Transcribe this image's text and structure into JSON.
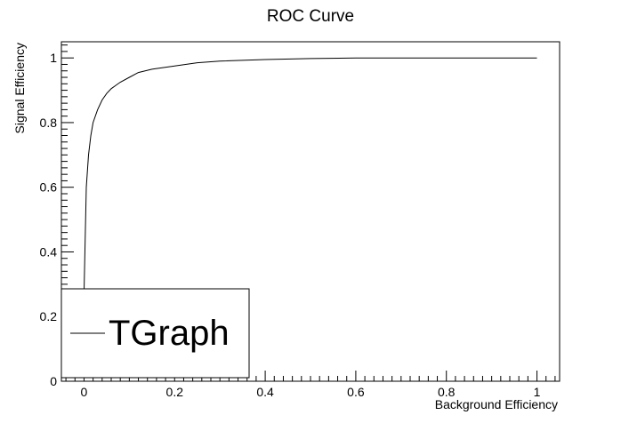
{
  "chart_data": {
    "type": "line",
    "title": "ROC Curve",
    "xlabel": "Background Efficiency",
    "ylabel": "Signal Efficiency",
    "xlim": [
      -0.05,
      1.05
    ],
    "ylim": [
      0,
      1.05
    ],
    "x_ticks": [
      0,
      0.2,
      0.4,
      0.6,
      0.8,
      1
    ],
    "x_tick_labels": [
      "0",
      "0.2",
      "0.4",
      "0.6",
      "0.8",
      "1"
    ],
    "y_ticks": [
      0,
      0.2,
      0.4,
      0.6,
      0.8,
      1
    ],
    "y_tick_labels": [
      "0",
      "0.2",
      "0.4",
      "0.6",
      "0.8",
      "1"
    ],
    "grid": false,
    "legend": {
      "position": "bottom-left",
      "entries": [
        "TGraph"
      ]
    },
    "series": [
      {
        "name": "TGraph",
        "color": "#000000",
        "x": [
          0.0,
          0.005,
          0.01,
          0.015,
          0.02,
          0.03,
          0.04,
          0.05,
          0.06,
          0.07,
          0.08,
          0.1,
          0.12,
          0.15,
          0.2,
          0.25,
          0.3,
          0.4,
          0.5,
          0.6,
          0.8,
          1.0
        ],
        "y": [
          0.28,
          0.6,
          0.7,
          0.76,
          0.8,
          0.84,
          0.87,
          0.89,
          0.905,
          0.915,
          0.925,
          0.94,
          0.955,
          0.965,
          0.975,
          0.985,
          0.99,
          0.995,
          0.998,
          1.0,
          1.0,
          1.0
        ]
      }
    ]
  }
}
